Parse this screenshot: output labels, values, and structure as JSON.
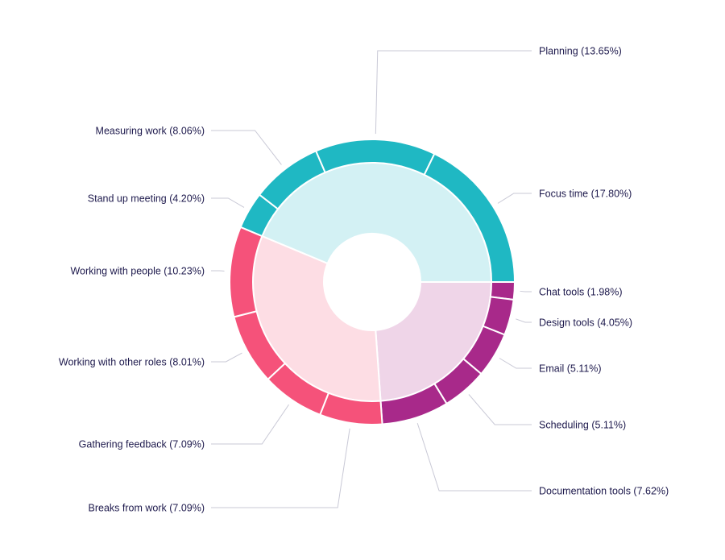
{
  "chart_data": {
    "type": "sunburst",
    "unit": "%",
    "groups": [
      {
        "color": "#a8298a",
        "inner_color": "#efd5e8",
        "children": [
          {
            "label": "Chat tools (1.98%)",
            "name": "Chat tools",
            "value": 1.98
          },
          {
            "label": "Design tools (4.05%)",
            "name": "Design tools",
            "value": 4.05
          },
          {
            "label": "Email (5.11%)",
            "name": "Email",
            "value": 5.11
          },
          {
            "label": "Scheduling (5.11%)",
            "name": "Scheduling",
            "value": 5.11
          },
          {
            "label": "Documentation tools (7.62%)",
            "name": "Documentation tools",
            "value": 7.62
          }
        ]
      },
      {
        "color": "#f5527a",
        "inner_color": "#fddde4",
        "children": [
          {
            "label": "Breaks from work (7.09%)",
            "name": "Breaks from work",
            "value": 7.09
          },
          {
            "label": "Gathering feedback (7.09%)",
            "name": "Gathering feedback",
            "value": 7.09
          },
          {
            "label": "Working with other roles (8.01%)",
            "name": "Working with other roles",
            "value": 8.01
          },
          {
            "label": "Working with people (10.23%)",
            "name": "Working with people",
            "value": 10.23
          }
        ]
      },
      {
        "color": "#1fb8c3",
        "inner_color": "#d3f1f4",
        "children": [
          {
            "label": "Stand up meeting (4.20%)",
            "name": "Stand up meeting",
            "value": 4.2
          },
          {
            "label": "Measuring work (8.06%)",
            "name": "Measuring work",
            "value": 8.06
          },
          {
            "label": "Planning (13.65%)",
            "name": "Planning",
            "value": 13.65
          },
          {
            "label": "Focus time (17.80%)",
            "name": "Focus time",
            "value": 17.8
          }
        ]
      }
    ],
    "text_color": "#1e1a4d",
    "leader_color": "#c9c9d6"
  }
}
